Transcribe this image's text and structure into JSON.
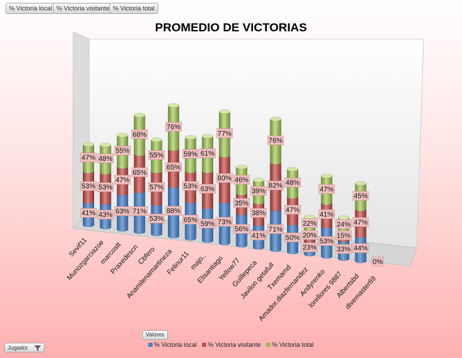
{
  "field_buttons": [
    "% Victoria local",
    "% Victoria visitante",
    "% Victoria total"
  ],
  "valores_label": "Valores",
  "jugador_label": "Jugador",
  "colors": {
    "local": "#4f81bd",
    "visitante": "#c0504d",
    "total": "#9bbb59"
  },
  "chart_data": {
    "type": "bar",
    "stacked": true,
    "three_d": true,
    "title": "PROMEDIO DE VICTORIAS",
    "categories": [
      "Sevif11",
      "Munozgarciazoe",
      "marcostt",
      "Praxedescn",
      "Cbfero",
      "Anamilenamartineza",
      "Felinur11",
      "majo..",
      "Elisantiago",
      "Yellow77",
      "Guillepeca",
      "Javilon getafull",
      "Txemamd",
      "Amador.diazfernandez",
      "Andyrenko",
      "lorellores 9887",
      "Albertsbd",
      "divemaster69"
    ],
    "series": [
      {
        "name": "% Victoria local",
        "values": [
          41,
          43,
          63,
          71,
          53,
          88,
          65,
          59,
          73,
          56,
          41,
          71,
          50,
          23,
          53,
          33,
          44,
          0
        ],
        "labels": [
          "41%",
          "43%",
          "63%",
          "71%",
          "53%",
          "88%",
          "65%",
          "59%",
          "73%",
          "56%",
          "41%",
          "71%",
          "50%",
          "23%",
          "53%",
          "33%",
          "44%",
          "0%"
        ]
      },
      {
        "name": "% Victoria visitante",
        "values": [
          53,
          53,
          47,
          65,
          57,
          65,
          53,
          63,
          80,
          35,
          38,
          82,
          47,
          20,
          41,
          15,
          47,
          0
        ],
        "labels": [
          "53%",
          "53%",
          "47%",
          "65%",
          "57%",
          "65%",
          "53%",
          "63%",
          "80%",
          "35%",
          "38%",
          "82%",
          "47%",
          "20%",
          "41%",
          "15%",
          "47%",
          ""
        ]
      },
      {
        "name": "% Victoria total",
        "values": [
          47,
          48,
          55,
          68,
          55,
          76,
          59,
          61,
          77,
          46,
          39,
          76,
          48,
          22,
          47,
          24,
          45,
          0
        ],
        "labels": [
          "47%",
          "48%",
          "55%",
          "68%",
          "55%",
          "76%",
          "59%",
          "61%",
          "77%",
          "46%",
          "39%",
          "76%",
          "48%",
          "22%",
          "47%",
          "24%",
          "45%",
          ""
        ]
      }
    ],
    "legend_position": "bottom",
    "grid": false
  }
}
